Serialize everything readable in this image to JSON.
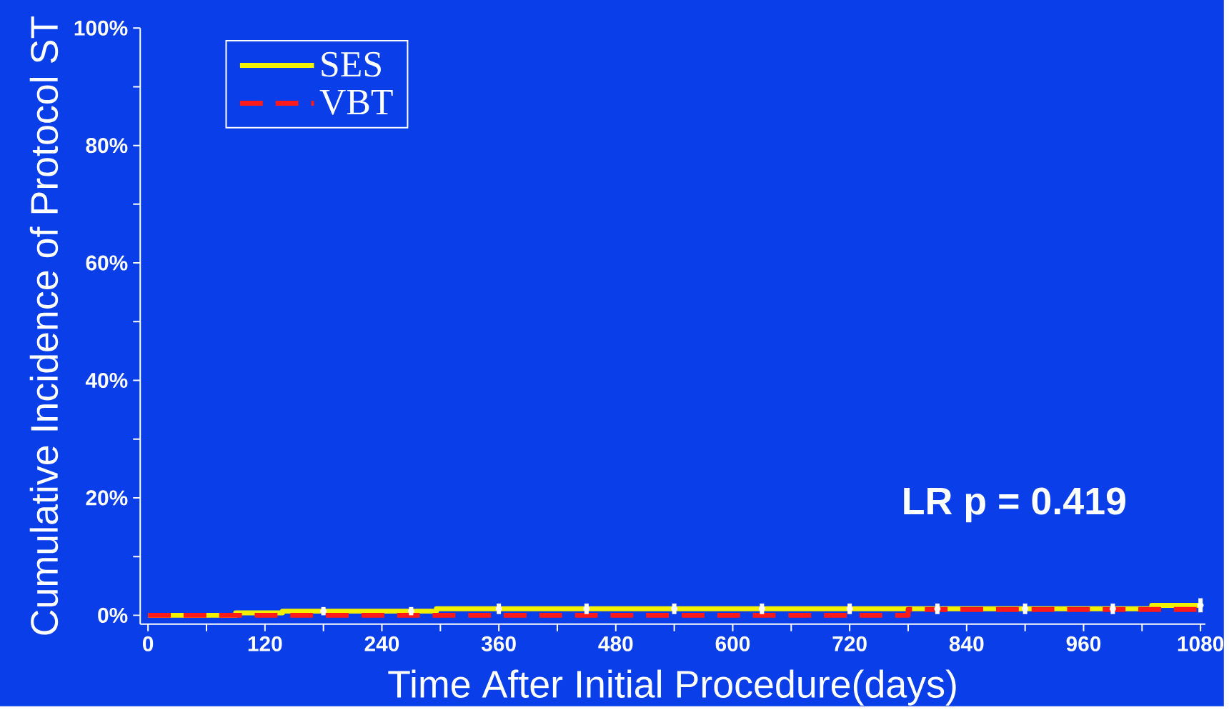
{
  "chart_data": {
    "type": "step",
    "xlabel": "Time After Initial Procedure(days)",
    "ylabel": "Cumulative Incidence of Protocol ST",
    "xlim": [
      -8,
      1085
    ],
    "ylim": [
      -1.5,
      100
    ],
    "xticks": [
      0,
      {
        "value": 60,
        "label": null
      },
      120,
      {
        "value": 180,
        "label": null
      },
      240,
      {
        "value": 300,
        "label": null
      },
      360,
      {
        "value": 420,
        "label": null
      },
      480,
      {
        "value": 540,
        "label": null
      },
      600,
      {
        "value": 660,
        "label": null
      },
      720,
      {
        "value": 780,
        "label": null
      },
      840,
      {
        "value": 900,
        "label": null
      },
      960,
      {
        "value": 1020,
        "label": null
      },
      1080
    ],
    "yticks": [
      {
        "value": 0,
        "label": "0%"
      },
      {
        "value": 10,
        "label": null
      },
      {
        "value": 20,
        "label": "20%"
      },
      {
        "value": 30,
        "label": null
      },
      {
        "value": 40,
        "label": "40%"
      },
      {
        "value": 50,
        "label": null
      },
      {
        "value": 60,
        "label": "60%"
      },
      {
        "value": 70,
        "label": null
      },
      {
        "value": 80,
        "label": "80%"
      },
      {
        "value": 90,
        "label": null
      },
      {
        "value": 100,
        "label": "100%"
      }
    ],
    "legend": "top left",
    "annotations": [
      "LR p = 0.419"
    ],
    "series": [
      {
        "name": "SES",
        "color": "#f2f200",
        "line_style": "solid",
        "x": [
          0,
          90,
          138,
          296,
          1030,
          1080
        ],
        "values": [
          0,
          0.4,
          0.7,
          1.1,
          1.7,
          1.7
        ]
      },
      {
        "name": "VBT",
        "color": "#ff1a1a",
        "line_style": "dashed",
        "x": [
          0,
          780,
          1080
        ],
        "values": [
          0,
          1.0,
          1.0
        ]
      },
      {
        "type": "scatter",
        "color": "#ffffff",
        "x": [
          180,
          270,
          360,
          450,
          540,
          630,
          720,
          810,
          900,
          990,
          1080
        ],
        "values": [
          0.7,
          0.7,
          1.1,
          1.1,
          1.1,
          1.1,
          1.1,
          1.1,
          1.1,
          1.1,
          1.7
        ],
        "errors": [
          0.7,
          0.7,
          0.9,
          0.9,
          0.9,
          0.9,
          0.9,
          0.9,
          0.9,
          0.9,
          1.2
        ]
      }
    ]
  }
}
